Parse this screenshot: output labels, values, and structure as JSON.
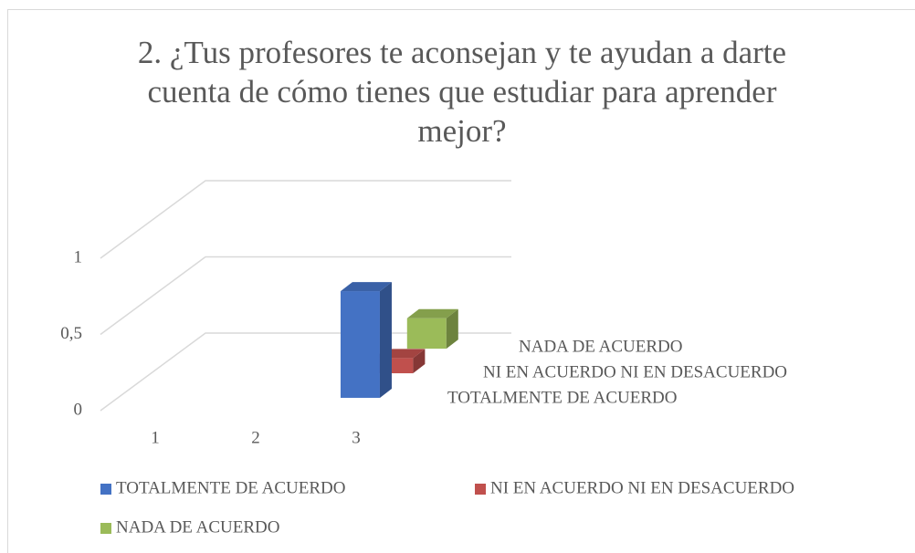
{
  "chart_data": {
    "type": "bar3d",
    "title": "2. ¿Tus profesores te aconsejan y te ayudan a darte cuenta de cómo tienes que estudiar para aprender mejor?",
    "categories": [
      "1",
      "2",
      "3"
    ],
    "series": [
      {
        "name": "TOTALMENTE DE ACUERDO",
        "color": "#4472c4",
        "values": [
          null,
          null,
          0.7
        ]
      },
      {
        "name": "NI EN ACUERDO NI EN DESACUERDO",
        "color": "#c0504d",
        "values": [
          null,
          null,
          0.1
        ]
      },
      {
        "name": "NADA DE ACUERDO",
        "color": "#9bbb59",
        "values": [
          null,
          null,
          0.2
        ]
      }
    ],
    "ylim": [
      0,
      1
    ],
    "yticks": [
      0,
      {
        "value": 0.5,
        "label": "0,5"
      },
      1
    ],
    "grid": true,
    "legend": "bottom"
  }
}
